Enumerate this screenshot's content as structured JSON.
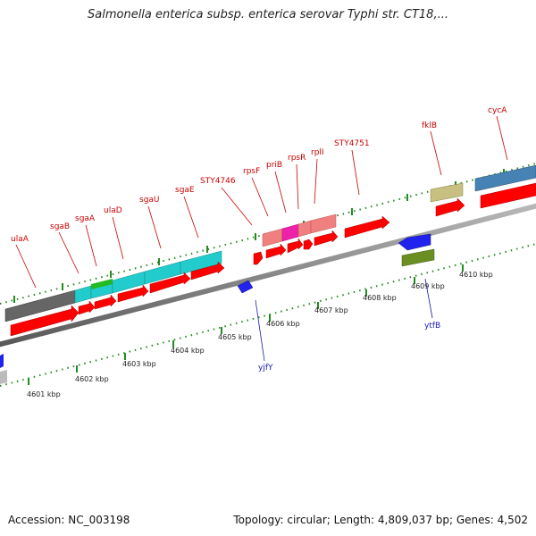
{
  "title": "Salmonella enterica subsp. enterica serovar Typhi str. CT18,...",
  "footer": {
    "accession": "Accession: NC_003198",
    "summary": "Topology: circular; Length: 4,809,037 bp; Genes: 4,502"
  },
  "colors": {
    "cds_red": "#ff0000",
    "cyan": "#22cccc",
    "gray": "#666666",
    "blue": "#2222ee",
    "olive": "#6b8e23",
    "khaki": "#c8c080",
    "steel_blue": "#4682b4",
    "pink": "#f08080",
    "magenta": "#ee22aa",
    "green": "#22bb22",
    "tick_green": "#228b22",
    "label_red": "#cc0000",
    "label_blue": "#1a1ab3"
  },
  "kbp_ticks": [
    "4601 kbp",
    "4602 kbp",
    "4603 kbp",
    "4604 kbp",
    "4605 kbp",
    "4606 kbp",
    "4607 kbp",
    "4608 kbp",
    "4609 kbp",
    "4610 kbp"
  ],
  "gene_labels_plus": [
    "ulaA",
    "sgaB",
    "sgaA",
    "ulaD",
    "sgaU",
    "sgaE",
    "STY4746",
    "rpsF",
    "priB",
    "rpsR",
    "rplI",
    "STY4751",
    "fklB",
    "cycA"
  ],
  "gene_labels_minus": [
    "yjfY",
    "ytfB"
  ]
}
